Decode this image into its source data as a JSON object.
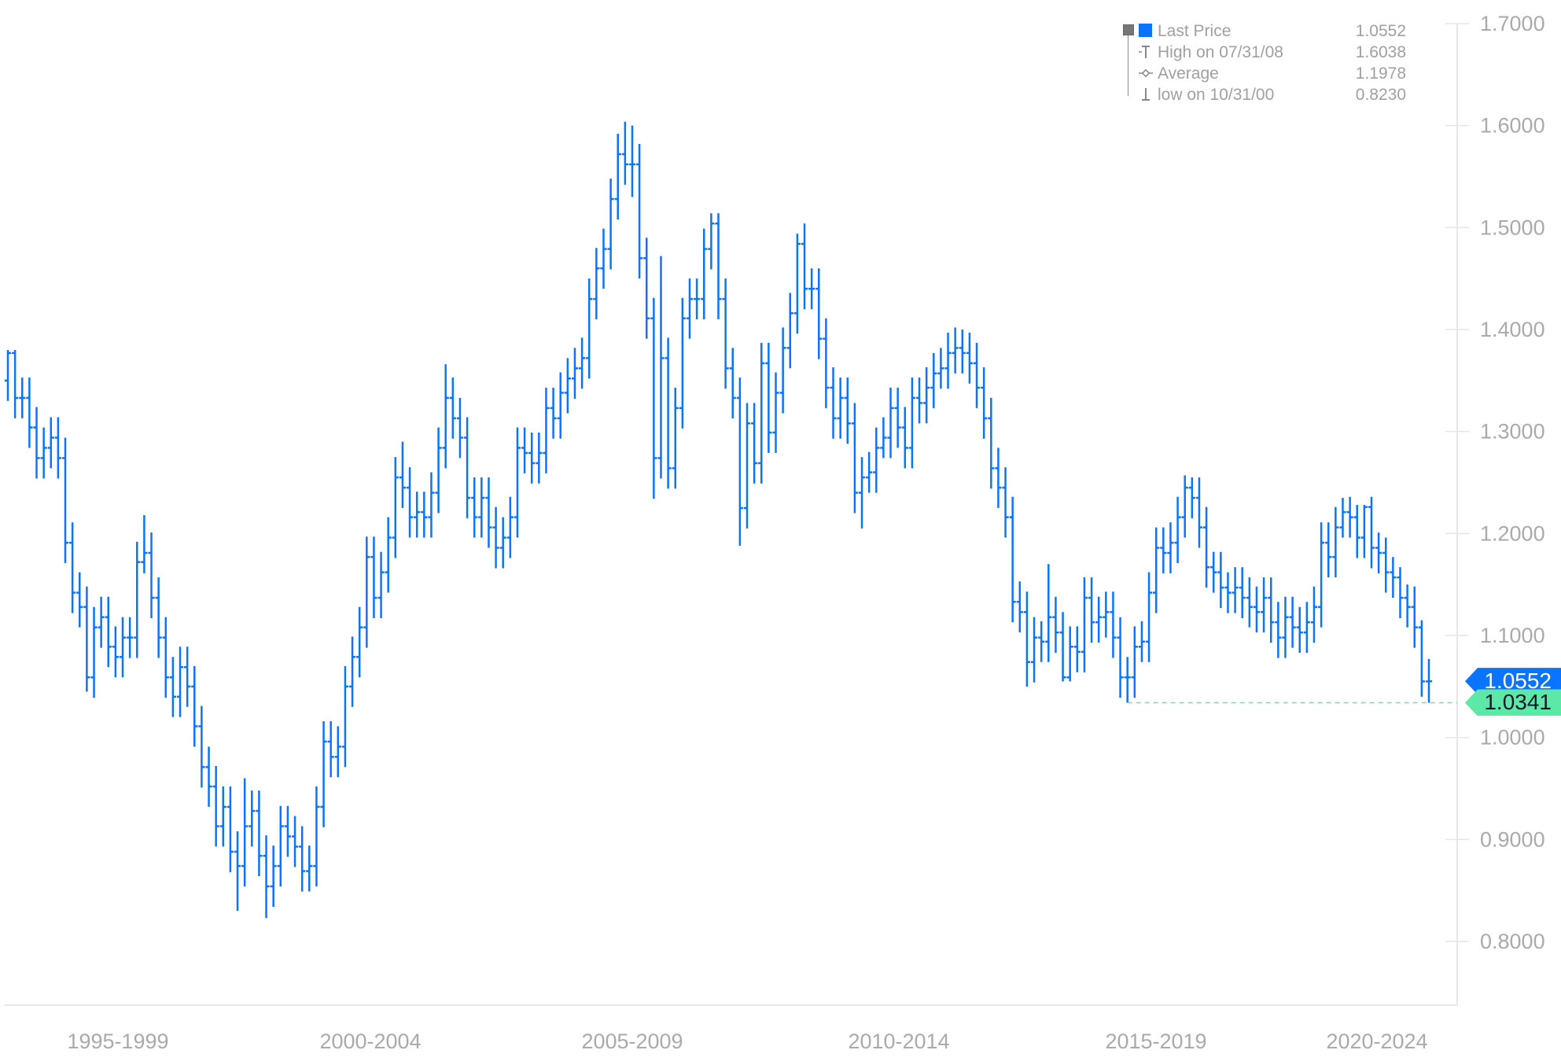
{
  "chart_data": {
    "type": "ohlc",
    "ylim": [
      0.74,
      1.7
    ],
    "y_ticks": [
      "1.7000",
      "1.6000",
      "1.5000",
      "1.4000",
      "1.3000",
      "1.2000",
      "1.1000",
      "1.0000",
      "0.9000",
      "0.8000"
    ],
    "x_tick_labels": [
      "1995-1999",
      "2000-2004",
      "2005-2009",
      "2010-2014",
      "2015-2019",
      "2020-2024"
    ],
    "grid": false,
    "legend_placement": "top-right",
    "colors": {
      "series": "#0a74ff",
      "last_tag": "#0a74ff",
      "low_tag": "#5ee8a8",
      "axis": "#e6e6e6",
      "text": "#aaaaaa"
    },
    "legend": [
      {
        "label": "Last Price",
        "value": "1.0552",
        "icon": "blue-square"
      },
      {
        "label": "High on 07/31/08",
        "value": "1.6038",
        "icon": "high-marker-icon"
      },
      {
        "label": "Average",
        "value": "1.1978",
        "icon": "average-marker-icon"
      },
      {
        "label": "low on 10/31/00",
        "value": "0.8230",
        "icon": "low-marker-icon"
      }
    ],
    "last_price_tag": "1.0552",
    "low_tag": "1.0341",
    "last_price": 1.0552,
    "recent_low": 1.0341,
    "recent_low_bar": 156,
    "bars": [
      [
        1.35,
        1.38,
        1.33,
        1.377
      ],
      [
        1.377,
        1.38,
        1.313,
        1.333
      ],
      [
        1.333,
        1.353,
        1.313,
        1.333
      ],
      [
        1.333,
        1.353,
        1.284,
        1.304
      ],
      [
        1.304,
        1.324,
        1.254,
        1.274
      ],
      [
        1.274,
        1.304,
        1.254,
        1.284
      ],
      [
        1.284,
        1.314,
        1.264,
        1.294
      ],
      [
        1.294,
        1.314,
        1.254,
        1.274
      ],
      [
        1.274,
        1.294,
        1.171,
        1.191
      ],
      [
        1.191,
        1.211,
        1.122,
        1.142
      ],
      [
        1.142,
        1.162,
        1.108,
        1.128
      ],
      [
        1.128,
        1.148,
        1.045,
        1.059
      ],
      [
        1.059,
        1.128,
        1.039,
        1.108
      ],
      [
        1.108,
        1.138,
        1.088,
        1.118
      ],
      [
        1.118,
        1.138,
        1.069,
        1.089
      ],
      [
        1.089,
        1.109,
        1.059,
        1.079
      ],
      [
        1.079,
        1.118,
        1.059,
        1.098
      ],
      [
        1.098,
        1.118,
        1.078,
        1.098
      ],
      [
        1.098,
        1.192,
        1.078,
        1.172
      ],
      [
        1.172,
        1.218,
        1.161,
        1.181
      ],
      [
        1.181,
        1.201,
        1.117,
        1.137
      ],
      [
        1.137,
        1.157,
        1.078,
        1.098
      ],
      [
        1.098,
        1.118,
        1.039,
        1.059
      ],
      [
        1.059,
        1.079,
        1.02,
        1.04
      ],
      [
        1.04,
        1.089,
        1.02,
        1.069
      ],
      [
        1.069,
        1.089,
        1.03,
        1.05
      ],
      [
        1.05,
        1.07,
        0.991,
        1.011
      ],
      [
        1.011,
        1.031,
        0.951,
        0.971
      ],
      [
        0.971,
        0.991,
        0.932,
        0.952
      ],
      [
        0.952,
        0.972,
        0.893,
        0.913
      ],
      [
        0.913,
        0.952,
        0.893,
        0.932
      ],
      [
        0.932,
        0.952,
        0.868,
        0.888
      ],
      [
        0.888,
        0.908,
        0.83,
        0.874
      ],
      [
        0.874,
        0.96,
        0.854,
        0.913
      ],
      [
        0.913,
        0.948,
        0.893,
        0.928
      ],
      [
        0.928,
        0.948,
        0.864,
        0.884
      ],
      [
        0.884,
        0.904,
        0.823,
        0.854
      ],
      [
        0.854,
        0.894,
        0.834,
        0.874
      ],
      [
        0.874,
        0.933,
        0.854,
        0.913
      ],
      [
        0.913,
        0.933,
        0.883,
        0.903
      ],
      [
        0.903,
        0.923,
        0.873,
        0.893
      ],
      [
        0.893,
        0.913,
        0.849,
        0.869
      ],
      [
        0.869,
        0.894,
        0.849,
        0.874
      ],
      [
        0.874,
        0.952,
        0.854,
        0.932
      ],
      [
        0.932,
        1.016,
        0.912,
        0.996
      ],
      [
        0.996,
        1.016,
        0.961,
        0.981
      ],
      [
        0.981,
        1.011,
        0.961,
        0.991
      ],
      [
        0.991,
        1.07,
        0.971,
        1.05
      ],
      [
        1.05,
        1.099,
        1.03,
        1.079
      ],
      [
        1.079,
        1.128,
        1.059,
        1.108
      ],
      [
        1.108,
        1.197,
        1.088,
        1.177
      ],
      [
        1.177,
        1.197,
        1.117,
        1.137
      ],
      [
        1.137,
        1.182,
        1.117,
        1.162
      ],
      [
        1.162,
        1.216,
        1.142,
        1.196
      ],
      [
        1.196,
        1.275,
        1.176,
        1.255
      ],
      [
        1.255,
        1.29,
        1.225,
        1.245
      ],
      [
        1.245,
        1.265,
        1.196,
        1.216
      ],
      [
        1.216,
        1.241,
        1.196,
        1.221
      ],
      [
        1.221,
        1.241,
        1.196,
        1.216
      ],
      [
        1.216,
        1.26,
        1.196,
        1.24
      ],
      [
        1.24,
        1.304,
        1.22,
        1.284
      ],
      [
        1.284,
        1.366,
        1.264,
        1.333
      ],
      [
        1.333,
        1.353,
        1.293,
        1.313
      ],
      [
        1.313,
        1.333,
        1.274,
        1.294
      ],
      [
        1.294,
        1.314,
        1.215,
        1.235
      ],
      [
        1.235,
        1.255,
        1.196,
        1.216
      ],
      [
        1.216,
        1.255,
        1.196,
        1.235
      ],
      [
        1.235,
        1.255,
        1.186,
        1.206
      ],
      [
        1.206,
        1.226,
        1.166,
        1.186
      ],
      [
        1.186,
        1.216,
        1.166,
        1.196
      ],
      [
        1.196,
        1.236,
        1.176,
        1.216
      ],
      [
        1.216,
        1.304,
        1.196,
        1.284
      ],
      [
        1.284,
        1.304,
        1.259,
        1.279
      ],
      [
        1.279,
        1.299,
        1.249,
        1.269
      ],
      [
        1.269,
        1.299,
        1.249,
        1.279
      ],
      [
        1.279,
        1.343,
        1.259,
        1.323
      ],
      [
        1.323,
        1.343,
        1.293,
        1.313
      ],
      [
        1.313,
        1.358,
        1.293,
        1.338
      ],
      [
        1.338,
        1.372,
        1.318,
        1.352
      ],
      [
        1.352,
        1.382,
        1.332,
        1.362
      ],
      [
        1.362,
        1.392,
        1.342,
        1.372
      ],
      [
        1.372,
        1.45,
        1.352,
        1.43
      ],
      [
        1.43,
        1.48,
        1.41,
        1.46
      ],
      [
        1.46,
        1.499,
        1.44,
        1.479
      ],
      [
        1.479,
        1.548,
        1.459,
        1.528
      ],
      [
        1.528,
        1.592,
        1.508,
        1.572
      ],
      [
        1.572,
        1.6038,
        1.542,
        1.562
      ],
      [
        1.562,
        1.6,
        1.53,
        1.562
      ],
      [
        1.562,
        1.582,
        1.45,
        1.47
      ],
      [
        1.47,
        1.49,
        1.391,
        1.411
      ],
      [
        1.411,
        1.431,
        1.234,
        1.274
      ],
      [
        1.274,
        1.472,
        1.254,
        1.372
      ],
      [
        1.372,
        1.392,
        1.244,
        1.264
      ],
      [
        1.264,
        1.343,
        1.244,
        1.323
      ],
      [
        1.323,
        1.431,
        1.303,
        1.411
      ],
      [
        1.411,
        1.45,
        1.391,
        1.43
      ],
      [
        1.43,
        1.45,
        1.41,
        1.43
      ],
      [
        1.43,
        1.499,
        1.41,
        1.479
      ],
      [
        1.479,
        1.514,
        1.459,
        1.504
      ],
      [
        1.504,
        1.514,
        1.41,
        1.43
      ],
      [
        1.43,
        1.45,
        1.342,
        1.362
      ],
      [
        1.362,
        1.382,
        1.313,
        1.333
      ],
      [
        1.333,
        1.353,
        1.188,
        1.225
      ],
      [
        1.225,
        1.328,
        1.205,
        1.308
      ],
      [
        1.308,
        1.328,
        1.249,
        1.269
      ],
      [
        1.269,
        1.387,
        1.249,
        1.367
      ],
      [
        1.367,
        1.387,
        1.279,
        1.299
      ],
      [
        1.299,
        1.358,
        1.279,
        1.338
      ],
      [
        1.338,
        1.402,
        1.318,
        1.382
      ],
      [
        1.382,
        1.436,
        1.362,
        1.416
      ],
      [
        1.416,
        1.494,
        1.396,
        1.484
      ],
      [
        1.484,
        1.504,
        1.42,
        1.44
      ],
      [
        1.44,
        1.46,
        1.42,
        1.44
      ],
      [
        1.44,
        1.46,
        1.371,
        1.391
      ],
      [
        1.391,
        1.411,
        1.323,
        1.343
      ],
      [
        1.343,
        1.363,
        1.293,
        1.313
      ],
      [
        1.313,
        1.353,
        1.293,
        1.333
      ],
      [
        1.333,
        1.353,
        1.288,
        1.308
      ],
      [
        1.308,
        1.328,
        1.22,
        1.24
      ],
      [
        1.24,
        1.275,
        1.205,
        1.255
      ],
      [
        1.255,
        1.28,
        1.24,
        1.26
      ],
      [
        1.26,
        1.304,
        1.24,
        1.284
      ],
      [
        1.284,
        1.314,
        1.274,
        1.294
      ],
      [
        1.294,
        1.343,
        1.274,
        1.323
      ],
      [
        1.323,
        1.343,
        1.284,
        1.304
      ],
      [
        1.304,
        1.324,
        1.264,
        1.284
      ],
      [
        1.284,
        1.353,
        1.264,
        1.333
      ],
      [
        1.333,
        1.353,
        1.308,
        1.328
      ],
      [
        1.328,
        1.363,
        1.308,
        1.343
      ],
      [
        1.343,
        1.377,
        1.323,
        1.357
      ],
      [
        1.357,
        1.382,
        1.342,
        1.362
      ],
      [
        1.362,
        1.397,
        1.342,
        1.377
      ],
      [
        1.377,
        1.402,
        1.357,
        1.382
      ],
      [
        1.382,
        1.4,
        1.357,
        1.377
      ],
      [
        1.377,
        1.397,
        1.347,
        1.367
      ],
      [
        1.367,
        1.387,
        1.323,
        1.343
      ],
      [
        1.343,
        1.363,
        1.293,
        1.313
      ],
      [
        1.313,
        1.333,
        1.244,
        1.264
      ],
      [
        1.264,
        1.284,
        1.225,
        1.245
      ],
      [
        1.245,
        1.265,
        1.196,
        1.216
      ],
      [
        1.216,
        1.236,
        1.113,
        1.133
      ],
      [
        1.133,
        1.153,
        1.103,
        1.123
      ],
      [
        1.123,
        1.143,
        1.05,
        1.074
      ],
      [
        1.074,
        1.118,
        1.054,
        1.098
      ],
      [
        1.098,
        1.114,
        1.074,
        1.094
      ],
      [
        1.094,
        1.17,
        1.074,
        1.118
      ],
      [
        1.118,
        1.138,
        1.083,
        1.103
      ],
      [
        1.103,
        1.123,
        1.055,
        1.059
      ],
      [
        1.059,
        1.109,
        1.055,
        1.089
      ],
      [
        1.089,
        1.109,
        1.064,
        1.084
      ],
      [
        1.084,
        1.157,
        1.064,
        1.137
      ],
      [
        1.137,
        1.157,
        1.093,
        1.113
      ],
      [
        1.113,
        1.138,
        1.093,
        1.118
      ],
      [
        1.118,
        1.143,
        1.098,
        1.123
      ],
      [
        1.123,
        1.143,
        1.078,
        1.098
      ],
      [
        1.098,
        1.118,
        1.039,
        1.059
      ],
      [
        1.059,
        1.079,
        1.0341,
        1.059
      ],
      [
        1.059,
        1.109,
        1.039,
        1.089
      ],
      [
        1.089,
        1.114,
        1.074,
        1.094
      ],
      [
        1.094,
        1.162,
        1.074,
        1.142
      ],
      [
        1.142,
        1.206,
        1.122,
        1.186
      ],
      [
        1.186,
        1.206,
        1.161,
        1.181
      ],
      [
        1.181,
        1.211,
        1.161,
        1.191
      ],
      [
        1.191,
        1.236,
        1.171,
        1.216
      ],
      [
        1.216,
        1.257,
        1.196,
        1.245
      ],
      [
        1.245,
        1.255,
        1.215,
        1.235
      ],
      [
        1.235,
        1.255,
        1.186,
        1.206
      ],
      [
        1.206,
        1.226,
        1.147,
        1.167
      ],
      [
        1.167,
        1.182,
        1.142,
        1.162
      ],
      [
        1.162,
        1.182,
        1.127,
        1.147
      ],
      [
        1.147,
        1.162,
        1.122,
        1.142
      ],
      [
        1.142,
        1.167,
        1.122,
        1.147
      ],
      [
        1.147,
        1.167,
        1.117,
        1.137
      ],
      [
        1.137,
        1.157,
        1.108,
        1.128
      ],
      [
        1.128,
        1.148,
        1.103,
        1.123
      ],
      [
        1.123,
        1.157,
        1.103,
        1.137
      ],
      [
        1.137,
        1.157,
        1.093,
        1.113
      ],
      [
        1.113,
        1.133,
        1.078,
        1.098
      ],
      [
        1.098,
        1.138,
        1.078,
        1.118
      ],
      [
        1.118,
        1.138,
        1.088,
        1.108
      ],
      [
        1.108,
        1.128,
        1.083,
        1.103
      ],
      [
        1.103,
        1.133,
        1.083,
        1.113
      ],
      [
        1.113,
        1.148,
        1.093,
        1.128
      ],
      [
        1.128,
        1.211,
        1.108,
        1.191
      ],
      [
        1.191,
        1.211,
        1.157,
        1.177
      ],
      [
        1.177,
        1.226,
        1.157,
        1.206
      ],
      [
        1.206,
        1.235,
        1.196,
        1.221
      ],
      [
        1.221,
        1.236,
        1.196,
        1.216
      ],
      [
        1.216,
        1.228,
        1.176,
        1.196
      ],
      [
        1.196,
        1.228,
        1.176,
        1.226
      ],
      [
        1.226,
        1.236,
        1.166,
        1.186
      ],
      [
        1.186,
        1.201,
        1.161,
        1.181
      ],
      [
        1.181,
        1.196,
        1.142,
        1.162
      ],
      [
        1.162,
        1.177,
        1.137,
        1.157
      ],
      [
        1.157,
        1.167,
        1.117,
        1.137
      ],
      [
        1.137,
        1.15,
        1.108,
        1.128
      ],
      [
        1.128,
        1.148,
        1.088,
        1.108
      ],
      [
        1.108,
        1.115,
        1.04,
        1.055
      ],
      [
        1.055,
        1.077,
        1.0341,
        1.0552
      ]
    ]
  }
}
